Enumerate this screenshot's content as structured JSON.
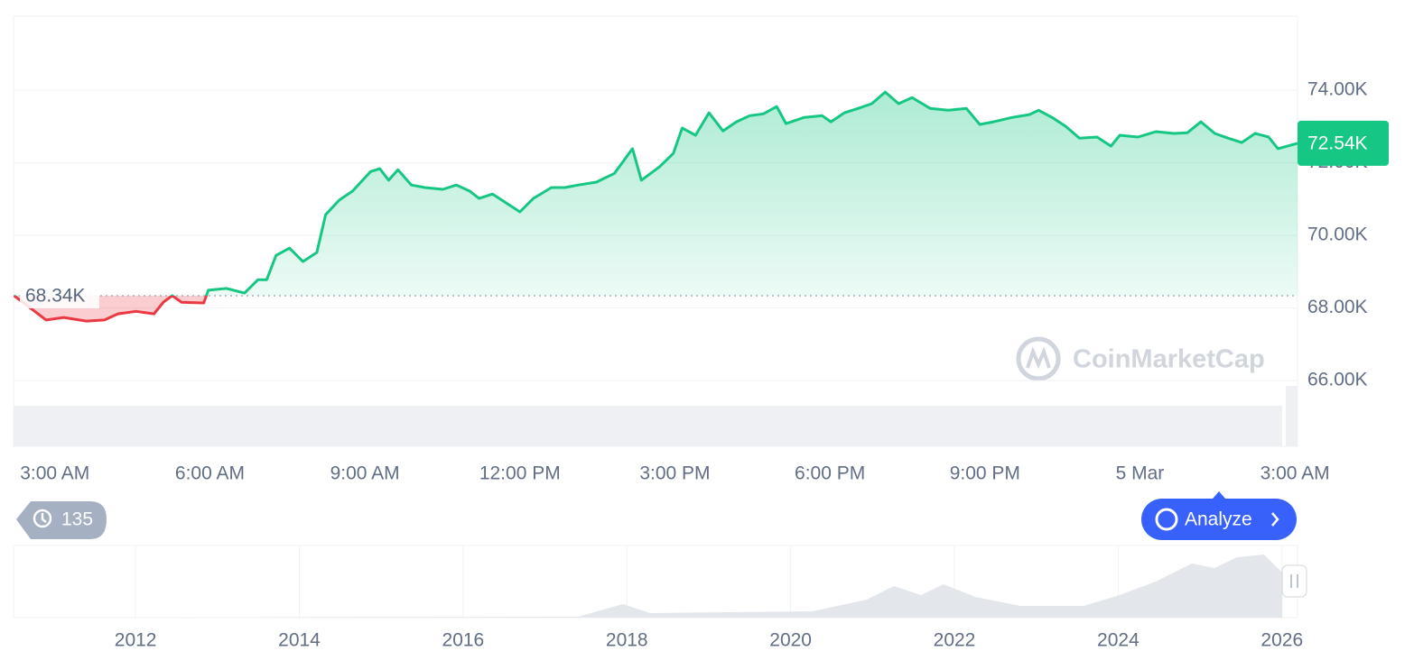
{
  "chart_data": [
    {
      "type": "line",
      "x": [
        2.21,
        2.83,
        3.17,
        3.61,
        3.96,
        4.22,
        4.57,
        4.92,
        5.1,
        5.27,
        5.45,
        5.88,
        5.97,
        6.32,
        6.67,
        6.93,
        7.1,
        7.28,
        7.54,
        7.8,
        8.07,
        8.24,
        8.5,
        8.76,
        9.11,
        9.29,
        9.46,
        9.64,
        9.9,
        10.16,
        10.51,
        10.77,
        11.03,
        11.21,
        11.47,
        11.73,
        12.0,
        12.26,
        12.61,
        12.87,
        13.13,
        13.48,
        13.83,
        14.18,
        14.35,
        14.7,
        14.97,
        15.14,
        15.4,
        15.66,
        15.93,
        16.19,
        16.45,
        16.71,
        16.97,
        17.15,
        17.5,
        17.85,
        18.02,
        18.28,
        18.55,
        18.81,
        19.07,
        19.33,
        19.59,
        19.94,
        20.29,
        20.64,
        20.9,
        21.17,
        21.52,
        21.86,
        22.04,
        22.3,
        22.56,
        22.83,
        23.17,
        23.44,
        23.61,
        23.96,
        24.31,
        24.66,
        24.92,
        25.18,
        25.45,
        25.71,
        25.97,
        26.23,
        26.49,
        26.67,
        27.05
      ],
      "values": [
        68340,
        67670,
        67740,
        67640,
        67670,
        67840,
        67910,
        67840,
        68160,
        68340,
        68160,
        68140,
        68490,
        68540,
        68410,
        68780,
        68780,
        69450,
        69650,
        69280,
        69530,
        70570,
        70970,
        71220,
        71760,
        71840,
        71520,
        71810,
        71390,
        71320,
        71270,
        71390,
        71220,
        71020,
        71140,
        70900,
        70650,
        71020,
        71320,
        71320,
        71390,
        71470,
        71710,
        72390,
        71520,
        71890,
        72260,
        72960,
        72760,
        73380,
        72880,
        73130,
        73300,
        73350,
        73550,
        73080,
        73250,
        73300,
        73130,
        73380,
        73500,
        73630,
        73950,
        73630,
        73800,
        73500,
        73450,
        73500,
        73060,
        73130,
        73250,
        73330,
        73450,
        73250,
        73010,
        72680,
        72710,
        72460,
        72760,
        72710,
        72860,
        72810,
        72830,
        73130,
        72810,
        72680,
        72560,
        72810,
        72710,
        72390,
        72540
      ],
      "color_up": "#16c784",
      "color_down": "#ea3943",
      "xlim": [
        2.2,
        27.05
      ],
      "xticks": [
        {
          "value": 3,
          "label": "3:00 AM"
        },
        {
          "value": 6,
          "label": "6:00 AM"
        },
        {
          "value": 9,
          "label": "9:00 AM"
        },
        {
          "value": 12,
          "label": "12:00 PM"
        },
        {
          "value": 15,
          "label": "3:00 PM"
        },
        {
          "value": 18,
          "label": "6:00 PM"
        },
        {
          "value": 21,
          "label": "9:00 PM"
        },
        {
          "value": 24,
          "label": "5 Mar"
        },
        {
          "value": 27,
          "label": "3:00 AM"
        }
      ],
      "ylim": [
        64190,
        76040
      ],
      "yticks": [
        {
          "value": 66000,
          "label": "66.00K"
        },
        {
          "value": 68000,
          "label": "68.00K"
        },
        {
          "value": 70000,
          "label": "70.00K"
        },
        {
          "value": 72000,
          "label": "72.00K"
        },
        {
          "value": 74000,
          "label": "74.00K"
        }
      ],
      "grid": true,
      "reference": {
        "value": 68340,
        "label": "68.34K"
      },
      "last_price": {
        "value": 72540,
        "label": "72.54K"
      }
    },
    {
      "type": "area",
      "xlim": [
        2010.51,
        2026.19
      ],
      "xticks": [
        2012,
        2014,
        2016,
        2018,
        2020,
        2022,
        2024,
        2026
      ]
    }
  ],
  "ui": {
    "history_count": 135,
    "analyze": "Analyze",
    "watermark": "CoinMarketCap"
  }
}
